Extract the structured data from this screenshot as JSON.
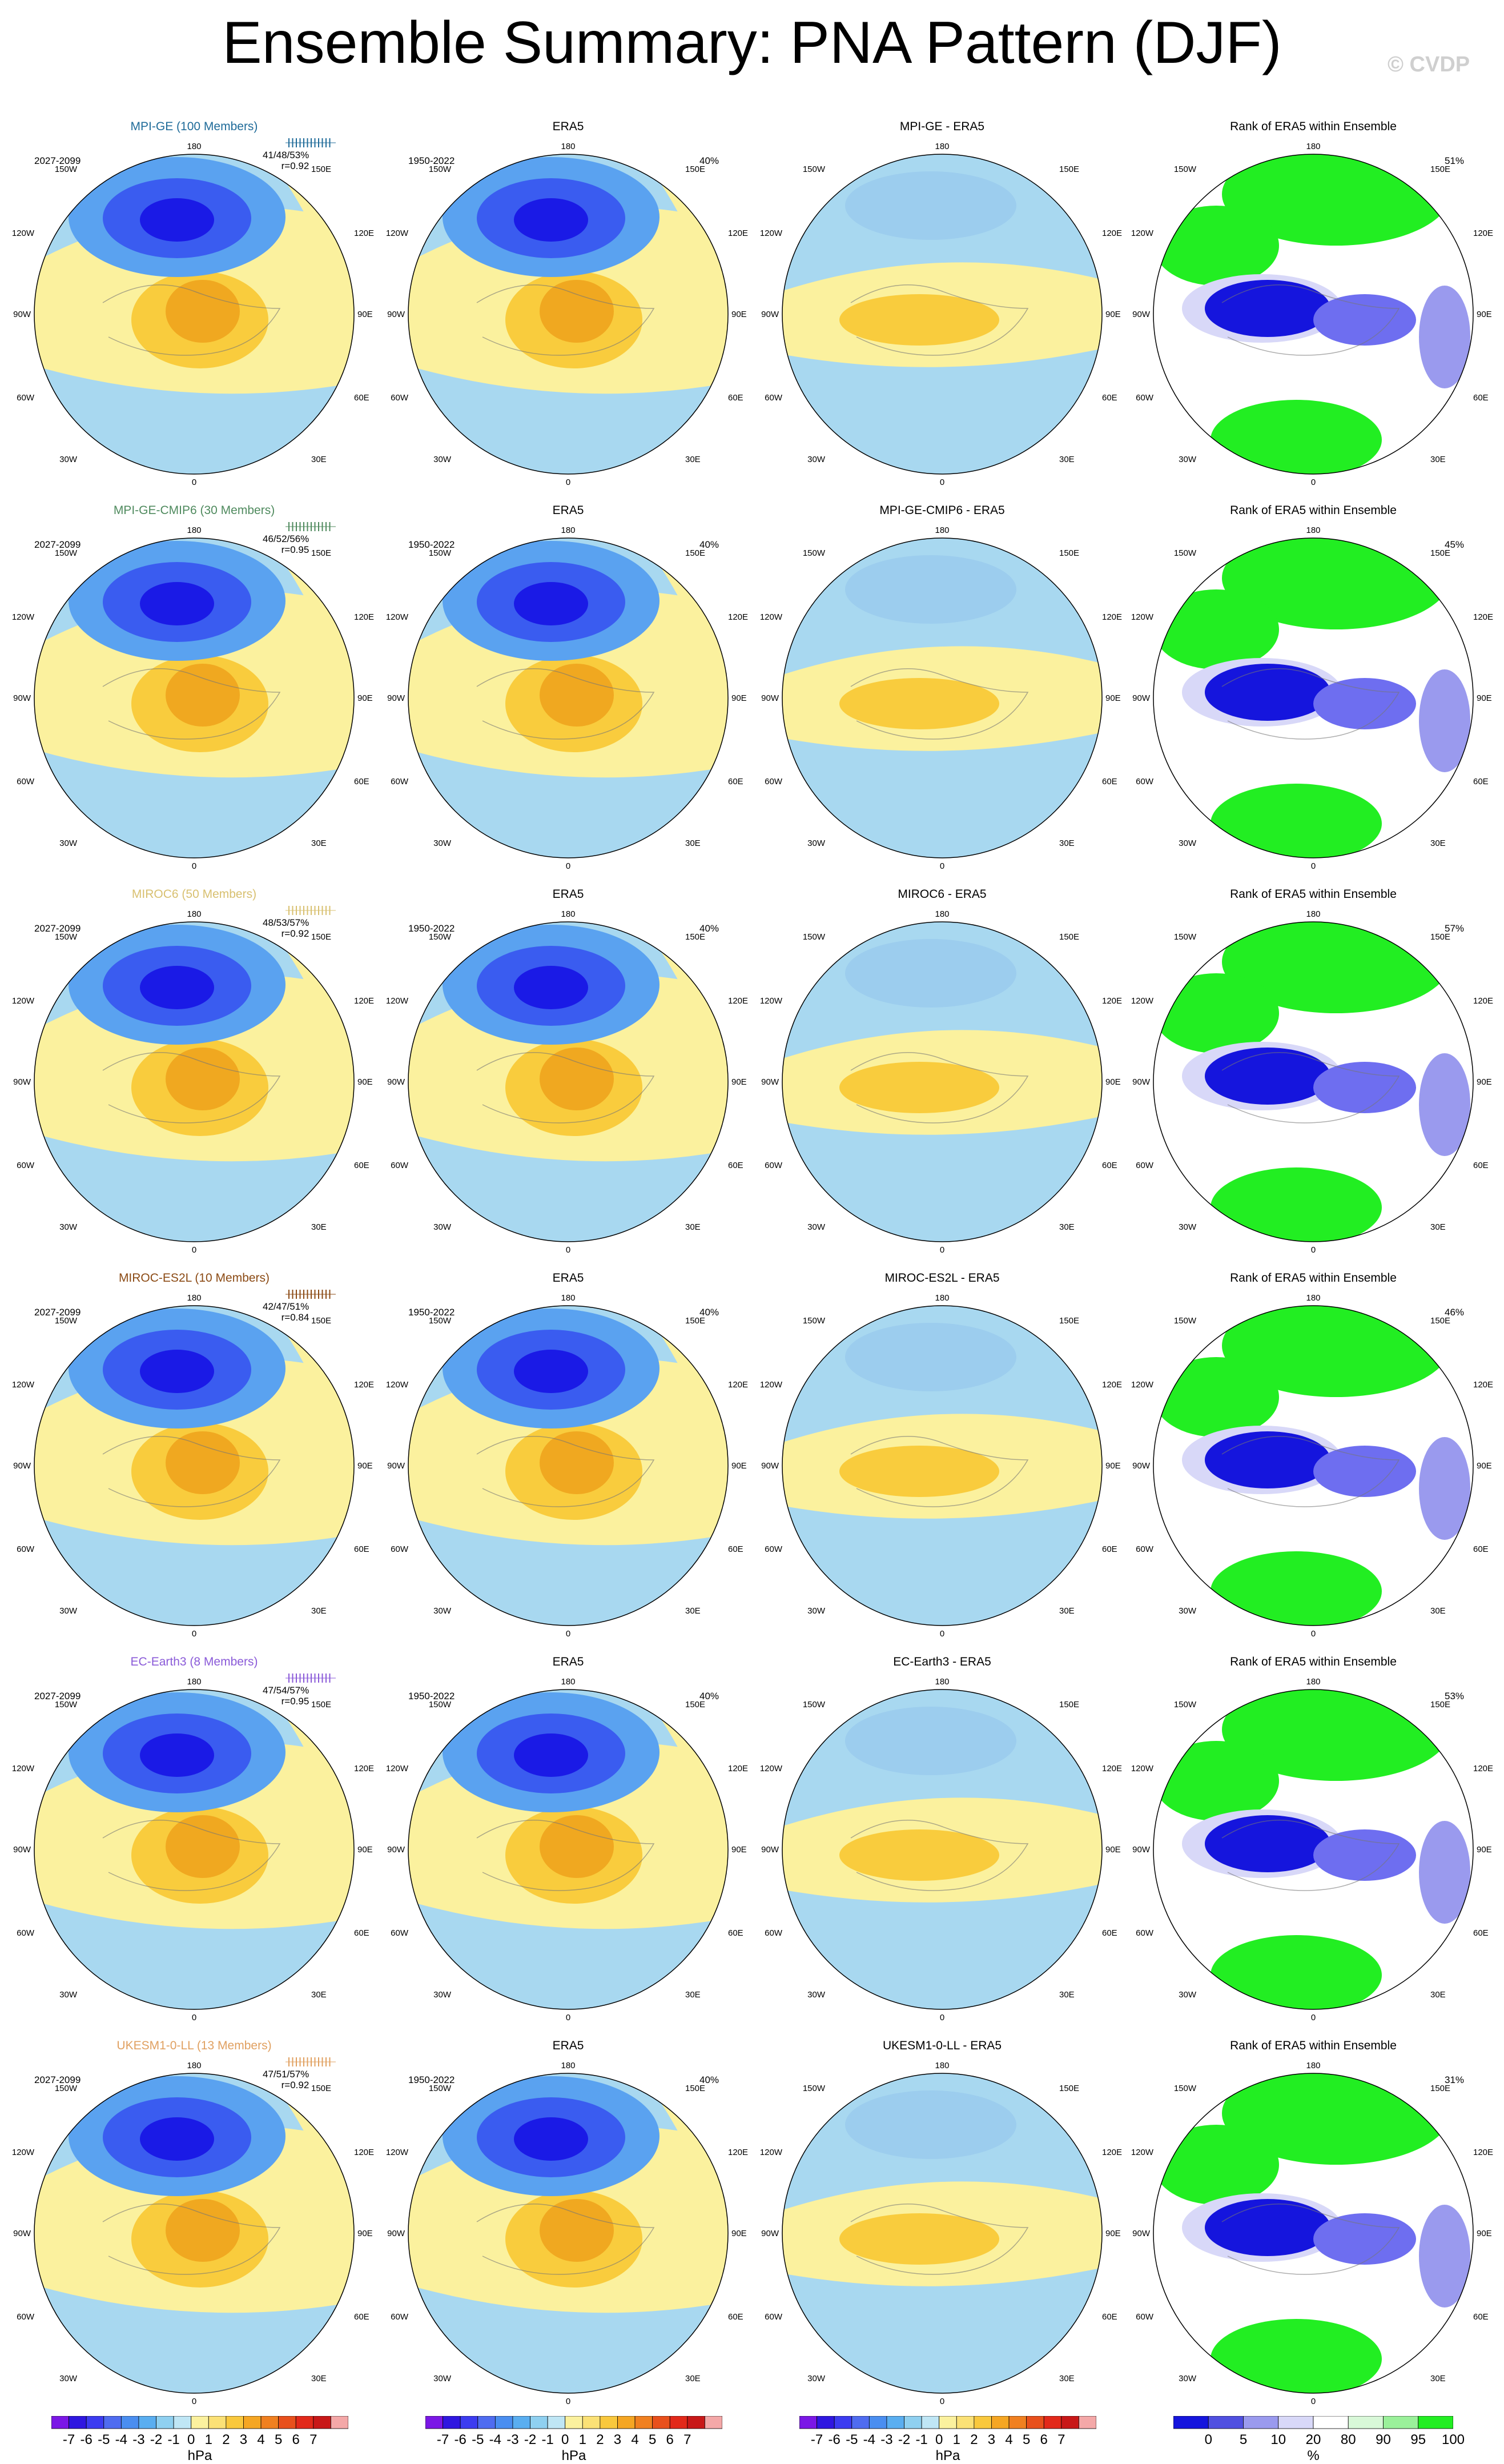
{
  "title": "Ensemble Summary: PNA Pattern (DJF)",
  "watermark": "© CVDP",
  "colors": {
    "blue_dark": "#1a1ae6",
    "blue_mid": "#3a5cf0",
    "blue_light": "#5aa2f0",
    "blue_pale": "#a8d8f0",
    "yellow": "#fbf19e",
    "orange_light": "#f9cc3d",
    "orange": "#f0a820",
    "rank_green": "#22ee22",
    "rank_blue": "#1515dd"
  },
  "longitude_labels": {
    "top": "180",
    "bottom": "0",
    "left_upper": "150W",
    "right_upper": "150E",
    "left_mid_upper": "120W",
    "right_mid_upper": "120E",
    "left_mid": "90W",
    "right_mid": "90E",
    "left_mid_lower": "60W",
    "right_mid_lower": "60E",
    "left_lower": "30W",
    "right_lower": "30E"
  },
  "rows": [
    {
      "model": "MPI-GE (100 Members)",
      "model_color": "#1f6b99",
      "period": "2027-2099",
      "stats": "41/48/53%",
      "corr": "r=0.92",
      "obs_title": "ERA5",
      "obs_period": "1950-2022",
      "obs_pct": "40%",
      "diff_title": "MPI-GE - ERA5",
      "rank_title": "Rank of ERA5 within Ensemble",
      "rank_pct": "51%"
    },
    {
      "model": "MPI-GE-CMIP6 (30 Members)",
      "model_color": "#4f8a5e",
      "period": "2027-2099",
      "stats": "46/52/56%",
      "corr": "r=0.95",
      "obs_title": "ERA5",
      "obs_period": "1950-2022",
      "obs_pct": "40%",
      "diff_title": "MPI-GE-CMIP6 - ERA5",
      "rank_title": "Rank of ERA5 within Ensemble",
      "rank_pct": "45%"
    },
    {
      "model": "MIROC6 (50 Members)",
      "model_color": "#d8c070",
      "period": "2027-2099",
      "stats": "48/53/57%",
      "corr": "r=0.92",
      "obs_title": "ERA5",
      "obs_period": "1950-2022",
      "obs_pct": "40%",
      "diff_title": "MIROC6 - ERA5",
      "rank_title": "Rank of ERA5 within Ensemble",
      "rank_pct": "57%"
    },
    {
      "model": "MIROC-ES2L (10 Members)",
      "model_color": "#8b4a14",
      "period": "2027-2099",
      "stats": "42/47/51%",
      "corr": "r=0.84",
      "obs_title": "ERA5",
      "obs_period": "1950-2022",
      "obs_pct": "40%",
      "diff_title": "MIROC-ES2L - ERA5",
      "rank_title": "Rank of ERA5 within Ensemble",
      "rank_pct": "46%"
    },
    {
      "model": "EC-Earth3 (8 Members)",
      "model_color": "#8a5ad8",
      "period": "2027-2099",
      "stats": "47/54/57%",
      "corr": "r=0.95",
      "obs_title": "ERA5",
      "obs_period": "1950-2022",
      "obs_pct": "40%",
      "diff_title": "EC-Earth3 - ERA5",
      "rank_title": "Rank of ERA5 within Ensemble",
      "rank_pct": "53%"
    },
    {
      "model": "UKESM1-0-LL (13 Members)",
      "model_color": "#e0a060",
      "period": "2027-2099",
      "stats": "47/51/57%",
      "corr": "r=0.92",
      "obs_title": "ERA5",
      "obs_period": "1950-2022",
      "obs_pct": "40%",
      "diff_title": "UKESM1-0-LL - ERA5",
      "rank_title": "Rank of ERA5 within Ensemble",
      "rank_pct": "31%"
    }
  ],
  "colorbars": {
    "hpa": {
      "ticks": [
        "-7",
        "-6",
        "-5",
        "-4",
        "-3",
        "-2",
        "-1",
        "0",
        "1",
        "2",
        "3",
        "4",
        "5",
        "6",
        "7"
      ],
      "unit": "hPa",
      "colors": [
        "#7b17e6",
        "#2f17e0",
        "#3c3cf0",
        "#4f6cf0",
        "#4a8ef0",
        "#5aaef0",
        "#8fd0f0",
        "#bfe6f5",
        "#fbf19e",
        "#fbe176",
        "#f9c83d",
        "#f5a623",
        "#f08020",
        "#e8501c",
        "#e2291a",
        "#c81818",
        "#f4a8a8"
      ]
    },
    "rank": {
      "ticks": [
        "0",
        "5",
        "10",
        "20",
        "80",
        "90",
        "95",
        "100"
      ],
      "unit": "%",
      "colors": [
        "#1515dd",
        "#5050e0",
        "#9a9aee",
        "#d8d8f8",
        "#ffffff",
        "#d8f8d8",
        "#9af09a",
        "#22ee22"
      ]
    }
  }
}
